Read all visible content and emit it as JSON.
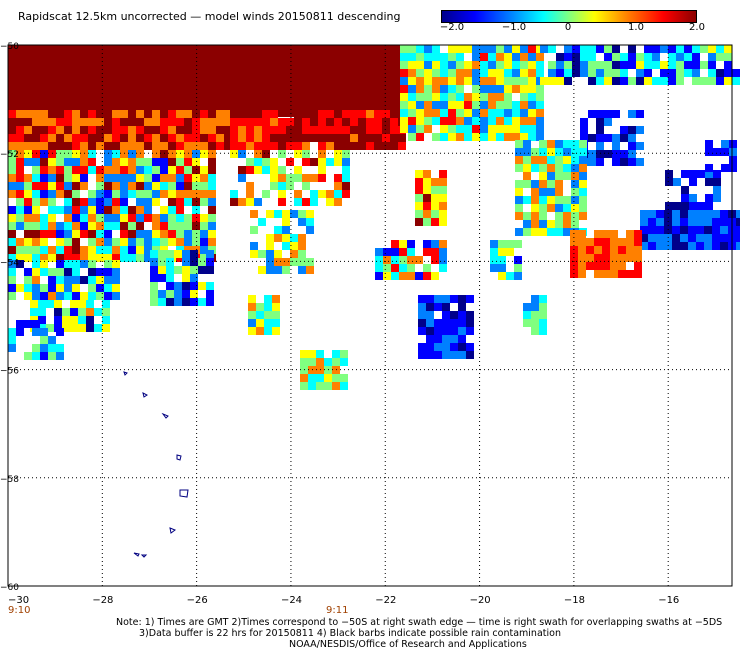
{
  "title": "Rapidscat 12.5km uncorrected — model winds 20150811 descending",
  "colorbar": {
    "tick_labels": [
      "−2.0",
      "−1.0",
      "0",
      "1.0",
      "2.0"
    ],
    "range": [
      -2.0,
      2.0
    ],
    "colors": [
      "#00008b",
      "#0000ff",
      "#0080ff",
      "#00ffff",
      "#80ff80",
      "#ffff00",
      "#ff8000",
      "#ff0000",
      "#8b0000"
    ]
  },
  "axes": {
    "x_ticks": [
      "−30",
      "−28",
      "−26",
      "−24",
      "−22",
      "−20",
      "−18",
      "−16"
    ],
    "y_ticks": [
      "−50",
      "−52",
      "−54",
      "−56",
      "−58",
      "−60"
    ],
    "lon_range": [
      -30,
      -15
    ],
    "lat_range": [
      -50,
      -60
    ]
  },
  "times": [
    "9:10",
    "9:11"
  ],
  "notes": [
    "Note: 1) Times are GMT 2)Times correspond to −50S at right swath edge — time is right swath for overlapping swaths at −5DS",
    "3)Data buffer is 22 hrs for 20150811 4) Black barbs indicate possible rain contamination",
    "NOAA/NESDIS/Office of Research and Applications"
  ]
}
